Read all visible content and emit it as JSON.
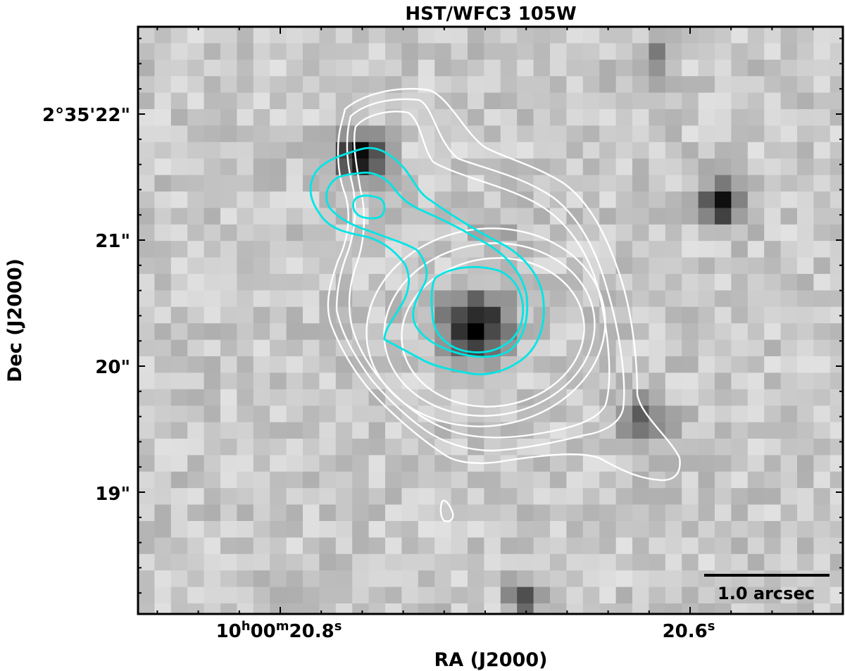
{
  "title": "HST/WFC3 105W",
  "xlabel": "RA (J2000)",
  "ylabel": "Dec (J2000)",
  "x_ticks": [
    {
      "h": "10",
      "m": "00",
      "s": "20.8"
    },
    {
      "s": "20.6"
    }
  ],
  "y_ticks": [
    "2°35'22\"",
    "21\"",
    "20\"",
    "19\""
  ],
  "scalebar_label": "1.0 arcsec",
  "colors": {
    "white_contours": "#ffffff",
    "cyan_contours": "#00e5e5",
    "axes": "#000000"
  },
  "image": {
    "colormap": "grayscale",
    "content": "HST/WFC3 F105W near-infrared cutout with white and cyan flux contours overlaid"
  }
}
